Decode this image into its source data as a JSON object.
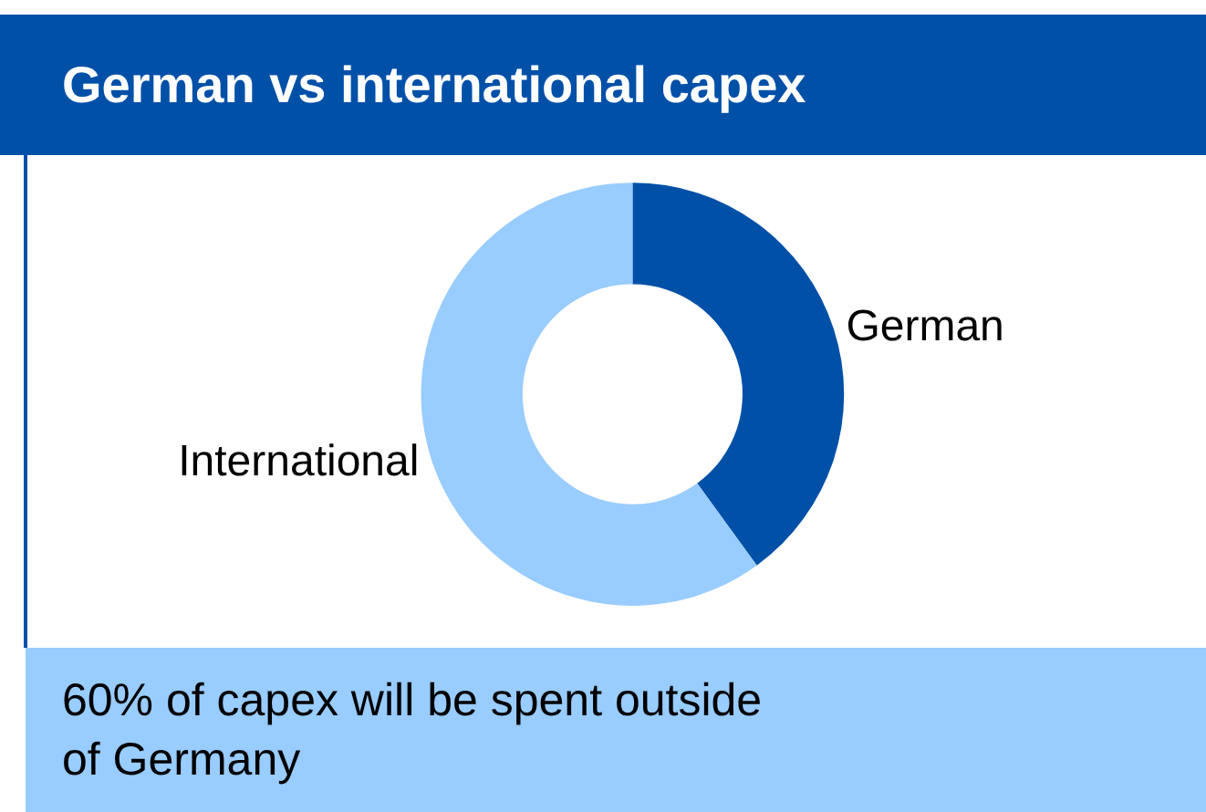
{
  "chart_data": {
    "type": "donut",
    "title": "German vs international capex",
    "categories": [
      "German",
      "International"
    ],
    "values": [
      40,
      60
    ],
    "colors": [
      "#0050a8",
      "#99ccff"
    ],
    "annotations": [
      "60% of capex will be spent outside\nof Germany"
    ]
  }
}
